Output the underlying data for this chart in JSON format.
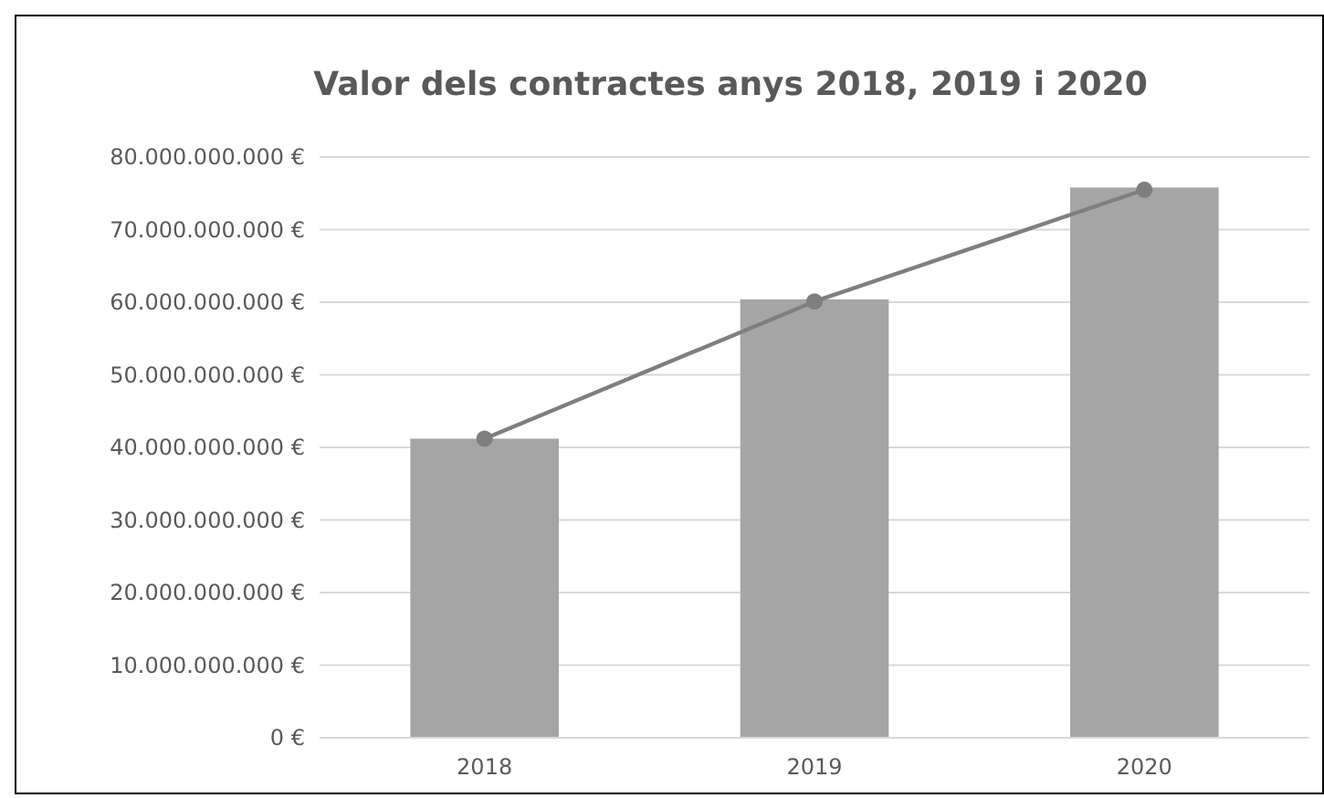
{
  "chart_data": {
    "type": "bar",
    "title": "Valor dels contractes anys 2018, 2019 i 2020",
    "categories": [
      "2018",
      "2019",
      "2020"
    ],
    "series": [
      {
        "color": "#a5a5a5",
        "values": [
          41200000000,
          60400000000,
          75800000000
        ]
      },
      {
        "type": "line",
        "color": "#7f7f7f",
        "values": [
          41200000000,
          60100000000,
          75500000000
        ],
        "marker": "circle"
      }
    ],
    "ylim": [
      0,
      80000000000
    ],
    "yticks": [
      {
        "value": 0,
        "label": "0 €"
      },
      {
        "value": 10000000000,
        "label": "10.000.000.000 €"
      },
      {
        "value": 20000000000,
        "label": "20.000.000.000 €"
      },
      {
        "value": 30000000000,
        "label": "30.000.000.000 €"
      },
      {
        "value": 40000000000,
        "label": "40.000.000.000 €"
      },
      {
        "value": 50000000000,
        "label": "50.000.000.000 €"
      },
      {
        "value": 60000000000,
        "label": "60.000.000.000 €"
      },
      {
        "value": 70000000000,
        "label": "70.000.000.000 €"
      },
      {
        "value": 80000000000,
        "label": "80.000.000.000 €"
      }
    ],
    "grid": "y"
  }
}
